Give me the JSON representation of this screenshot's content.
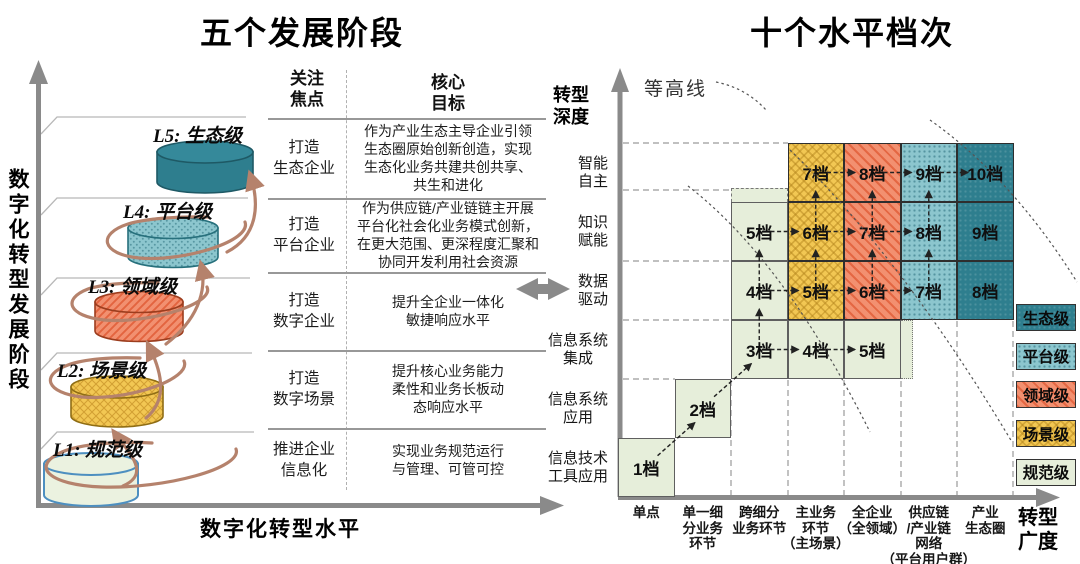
{
  "left_panel": {
    "title": "五个发展阶段",
    "y_axis_label": "数字化转型发展阶段",
    "x_axis_label": "数字化转型水平",
    "col_headers": {
      "focus": "关注\n焦点",
      "goal": "核心\n目标"
    },
    "levels": [
      {
        "label": "L5: 生态级",
        "grade_name": "生态级",
        "focus": "打造\n生态企业",
        "goal": "作为产业生态主导企业引领\n生态圈原始创新创造，实现\n生态化业务共建共创共享、\n共生和进化",
        "color": "#2E7E8E"
      },
      {
        "label": "L4: 平台级",
        "grade_name": "平台级",
        "focus": "打造\n平台企业",
        "goal": "作为供应链/产业链链主开展\n平台化社会化业务模式创新，\n在更大范围、更深程度汇聚和\n协同开发利用社会资源",
        "color": "#8CC6CE"
      },
      {
        "label": "L3: 领域级",
        "grade_name": "领域级",
        "focus": "打造\n数字企业",
        "goal": "提升全企业一体化\n敏捷响应水平",
        "color": "#F29070"
      },
      {
        "label": "L2: 场景级",
        "grade_name": "场景级",
        "focus": "打造\n数字场景",
        "goal": "提升核心业务能力\n柔性和业务长板动\n态响应水平",
        "color": "#F2C753"
      },
      {
        "label": "L1: 规范级",
        "grade_name": "规范级",
        "focus": "推进企业\n信息化",
        "goal": "实现业务规范运行\n与管理、可管可控",
        "color": "#E6EEDA"
      }
    ]
  },
  "right_panel": {
    "title": "十个水平档次",
    "contour_label": "等高线",
    "y_axis_label": "转型\n深度",
    "x_axis_label": "转型\n广度",
    "depth_levels": [
      "智能\n自主",
      "知识\n赋能",
      "数据\n驱动",
      "信息系统\n集成",
      "信息系统\n应用",
      "信息技术\n工具应用"
    ],
    "breadth_levels": [
      "单点",
      "单一细\n分业务\n环节",
      "跨细分\n业务环节",
      "主业务\n环节\n（主场景）",
      "全企业\n（全领域）",
      "供应链\n/产业链\n网络\n（平台用户群）",
      "产业\n生态圈"
    ],
    "cells": [
      {
        "row": 0,
        "col": 3,
        "grade": "7档",
        "level": "scene"
      },
      {
        "row": 0,
        "col": 4,
        "grade": "8档",
        "level": "domain"
      },
      {
        "row": 0,
        "col": 5,
        "grade": "9档",
        "level": "platform"
      },
      {
        "row": 0,
        "col": 6,
        "grade": "10档",
        "level": "ecology"
      },
      {
        "row": 1,
        "col": 2,
        "grade": "5档",
        "level": "standard"
      },
      {
        "row": 1,
        "col": 3,
        "grade": "6档",
        "level": "scene"
      },
      {
        "row": 1,
        "col": 4,
        "grade": "7档",
        "level": "domain"
      },
      {
        "row": 1,
        "col": 5,
        "grade": "8档",
        "level": "platform"
      },
      {
        "row": 1,
        "col": 6,
        "grade": "9档",
        "level": "ecology"
      },
      {
        "row": 2,
        "col": 2,
        "grade": "4档",
        "level": "standard"
      },
      {
        "row": 2,
        "col": 3,
        "grade": "5档",
        "level": "scene"
      },
      {
        "row": 2,
        "col": 4,
        "grade": "6档",
        "level": "domain"
      },
      {
        "row": 2,
        "col": 5,
        "grade": "7档",
        "level": "platform"
      },
      {
        "row": 2,
        "col": 6,
        "grade": "8档",
        "level": "ecology"
      },
      {
        "row": 3,
        "col": 2,
        "grade": "3档",
        "level": "standard"
      },
      {
        "row": 3,
        "col": 3,
        "grade": "4档",
        "level": "standard"
      },
      {
        "row": 3,
        "col": 4,
        "grade": "5档",
        "level": "standard"
      },
      {
        "row": 4,
        "col": 1,
        "grade": "2档",
        "level": "standard"
      },
      {
        "row": 5,
        "col": 0,
        "grade": "1档",
        "level": "standard"
      }
    ],
    "legend": [
      {
        "label": "生态级",
        "level": "ecology"
      },
      {
        "label": "平台级",
        "level": "platform"
      },
      {
        "label": "领域级",
        "level": "domain"
      },
      {
        "label": "场景级",
        "level": "scene"
      },
      {
        "label": "规范级",
        "level": "standard"
      }
    ]
  },
  "colors": {
    "ecology": "#2E7E8E",
    "platform": "#8CC6CE",
    "domain": "#F29070",
    "scene": "#F2C753",
    "standard": "#E6EEDA",
    "spiral_arrow": "#B5826C",
    "axis": "#8A8A8A"
  }
}
